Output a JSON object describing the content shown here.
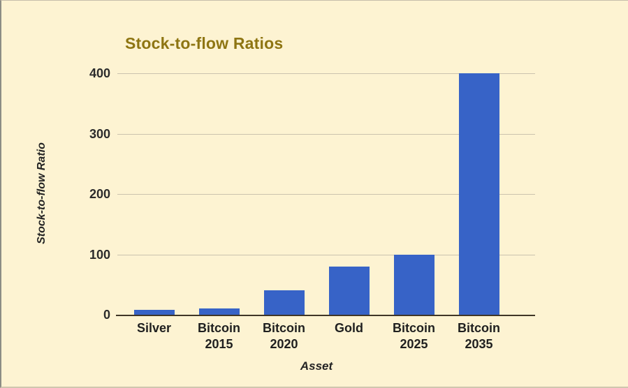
{
  "colors": {
    "background": "#fdf3d2",
    "bar": "#3763c7",
    "title": "#8e7512",
    "gridline": "#cbc2ae",
    "baseline": "#3f3626",
    "text": "#242424"
  },
  "chart_data": {
    "type": "bar",
    "title": "Stock-to-flow Ratios",
    "xlabel": "Asset",
    "ylabel": "Stock-to-flow Ratio",
    "categories": [
      "Silver",
      "Bitcoin\n2015",
      "Bitcoin\n2020",
      "Gold",
      "Bitcoin\n2025",
      "Bitcoin\n2035"
    ],
    "values": [
      8,
      10,
      40,
      80,
      100,
      400
    ],
    "ylim": [
      0,
      400
    ],
    "yticks": [
      0,
      100,
      200,
      300,
      400
    ],
    "grid": true,
    "legend": "none"
  }
}
